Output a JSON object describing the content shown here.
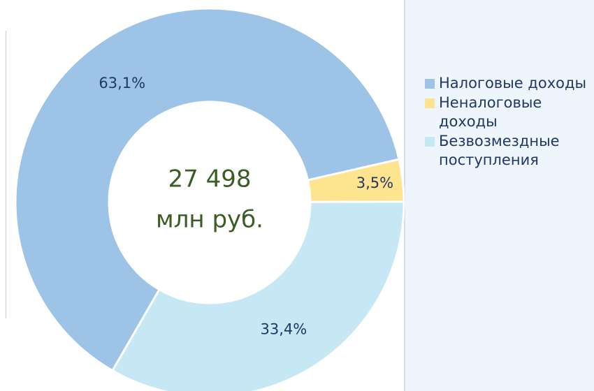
{
  "chart_data": {
    "type": "donut",
    "categories": [
      "Налоговые доходы",
      "Неналоговые доходы",
      "Безвозмездные поступления"
    ],
    "values": [
      63.1,
      3.5,
      33.4
    ],
    "value_labels": [
      "63,1%",
      "3,5%",
      "33,4%"
    ],
    "colors": [
      "#9dc3e6",
      "#ffe48f",
      "#c6e7f4"
    ],
    "annotations": [
      "27 498",
      "млн руб."
    ]
  }
}
